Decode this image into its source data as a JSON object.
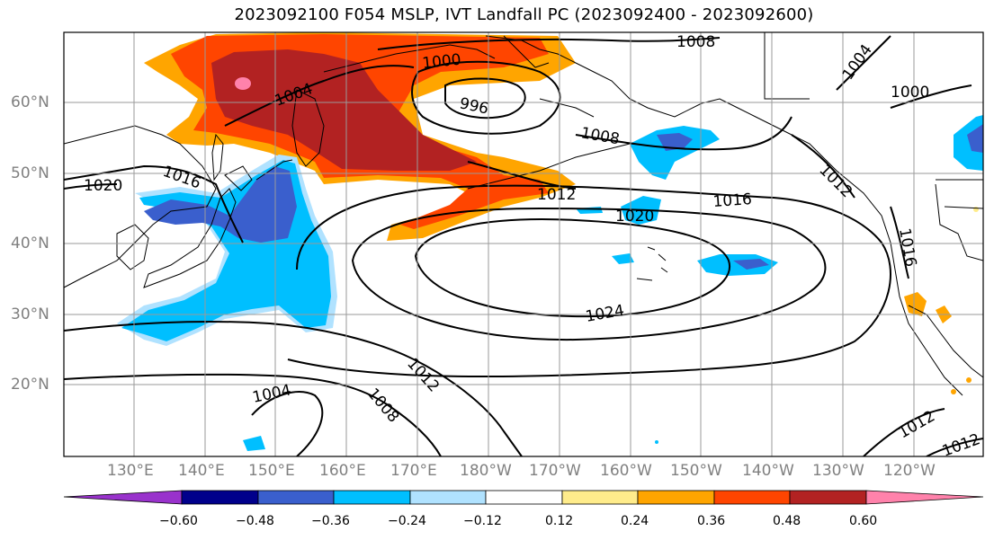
{
  "title": "2023092100 F054 MSLP, IVT Landfall PC (2023092400 - 2023092600)",
  "lat_labels": [
    "60°N",
    "50°N",
    "40°N",
    "30°N",
    "20°N"
  ],
  "lon_labels": [
    "130°E",
    "140°E",
    "150°E",
    "160°E",
    "170°E",
    "180°W",
    "170°W",
    "160°W",
    "150°W",
    "140°W",
    "130°W",
    "120°W"
  ],
  "contour_labels": [
    "1008",
    "1000",
    "996",
    "1004",
    "1004",
    "1000",
    "1008",
    "1016",
    "1020",
    "1012",
    "1016",
    "1020",
    "1012",
    "1016",
    "1024",
    "1012",
    "1008",
    "1004",
    "1012",
    "1012"
  ],
  "colorbar": {
    "ticks": [
      "−0.60",
      "−0.48",
      "−0.36",
      "−0.24",
      "−0.12",
      "0.12",
      "0.24",
      "0.36",
      "0.48",
      "0.60"
    ],
    "colors": {
      "lt_-0.60": "#9932CC",
      "-0.60_-0.48": "#00008B",
      "-0.48_-0.36": "#3A5FCD",
      "-0.36_-0.24": "#00BFFF",
      "-0.24_-0.12": "#B0E2FF",
      "-0.12_0.12": "#FFFFFF",
      "0.12_0.24": "#FFEC8B",
      "0.24_0.36": "#FFA500",
      "0.36_0.48": "#FF4500",
      "0.48_0.60": "#B22222",
      "gt_0.60": "#FF82AB"
    }
  }
}
